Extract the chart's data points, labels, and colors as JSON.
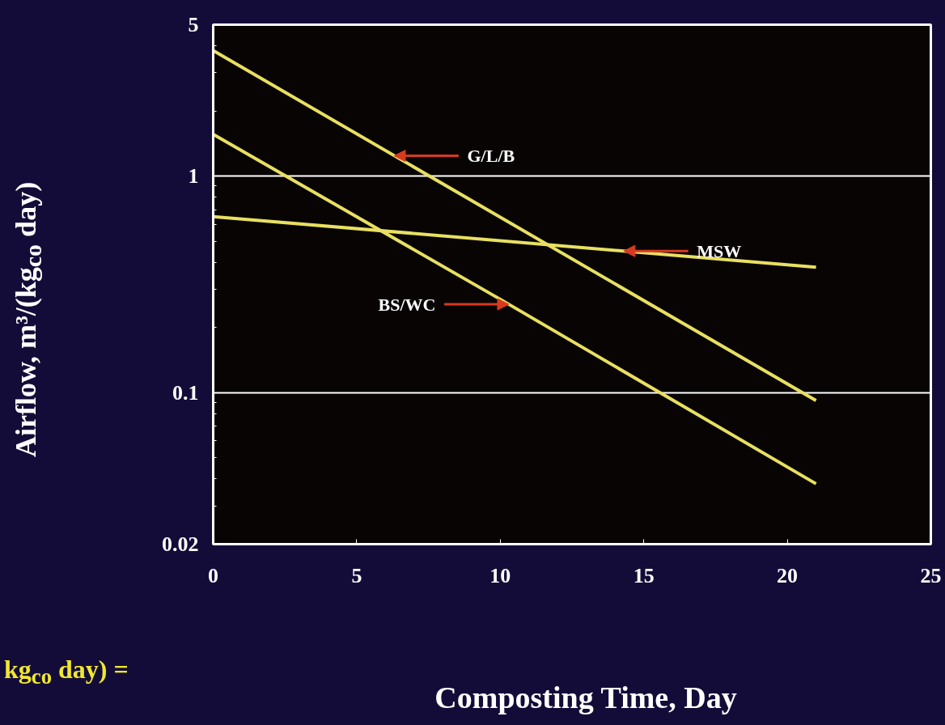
{
  "chart_data": {
    "type": "line",
    "xlabel": "Composting Time, Day",
    "ylabel": "Airflow, m³/(kg$_{co}$ day)",
    "log": "y",
    "xlim": [
      0,
      25
    ],
    "xticks": [
      0,
      5,
      10,
      15,
      20,
      25
    ],
    "ylim": [
      0.02,
      5
    ],
    "yticks": [
      0.02,
      0.1,
      1,
      5
    ],
    "grid": "y",
    "marker": "none",
    "line_style": "solid",
    "series": [
      {
        "color": "#e8e060",
        "x": [
          0,
          21
        ],
        "values": [
          3.8,
          0.092
        ]
      },
      {
        "color": "#e8e060",
        "x": [
          0,
          10,
          21
        ],
        "values": [
          1.56,
          0.27,
          0.038
        ]
      },
      {
        "color": "#e8e060",
        "x": [
          0,
          21
        ],
        "values": [
          0.65,
          0.38
        ]
      }
    ],
    "annotations": [
      {
        "text": "G/L/B",
        "x": 6.3,
        "y": 1.24
      },
      {
        "text": "MSW",
        "x": 14.3,
        "y": 0.451
      },
      {
        "text": "BS/WC",
        "x": 10.3,
        "y": 0.256
      },
      "kg$_{co}$ day) ="
    ]
  }
}
